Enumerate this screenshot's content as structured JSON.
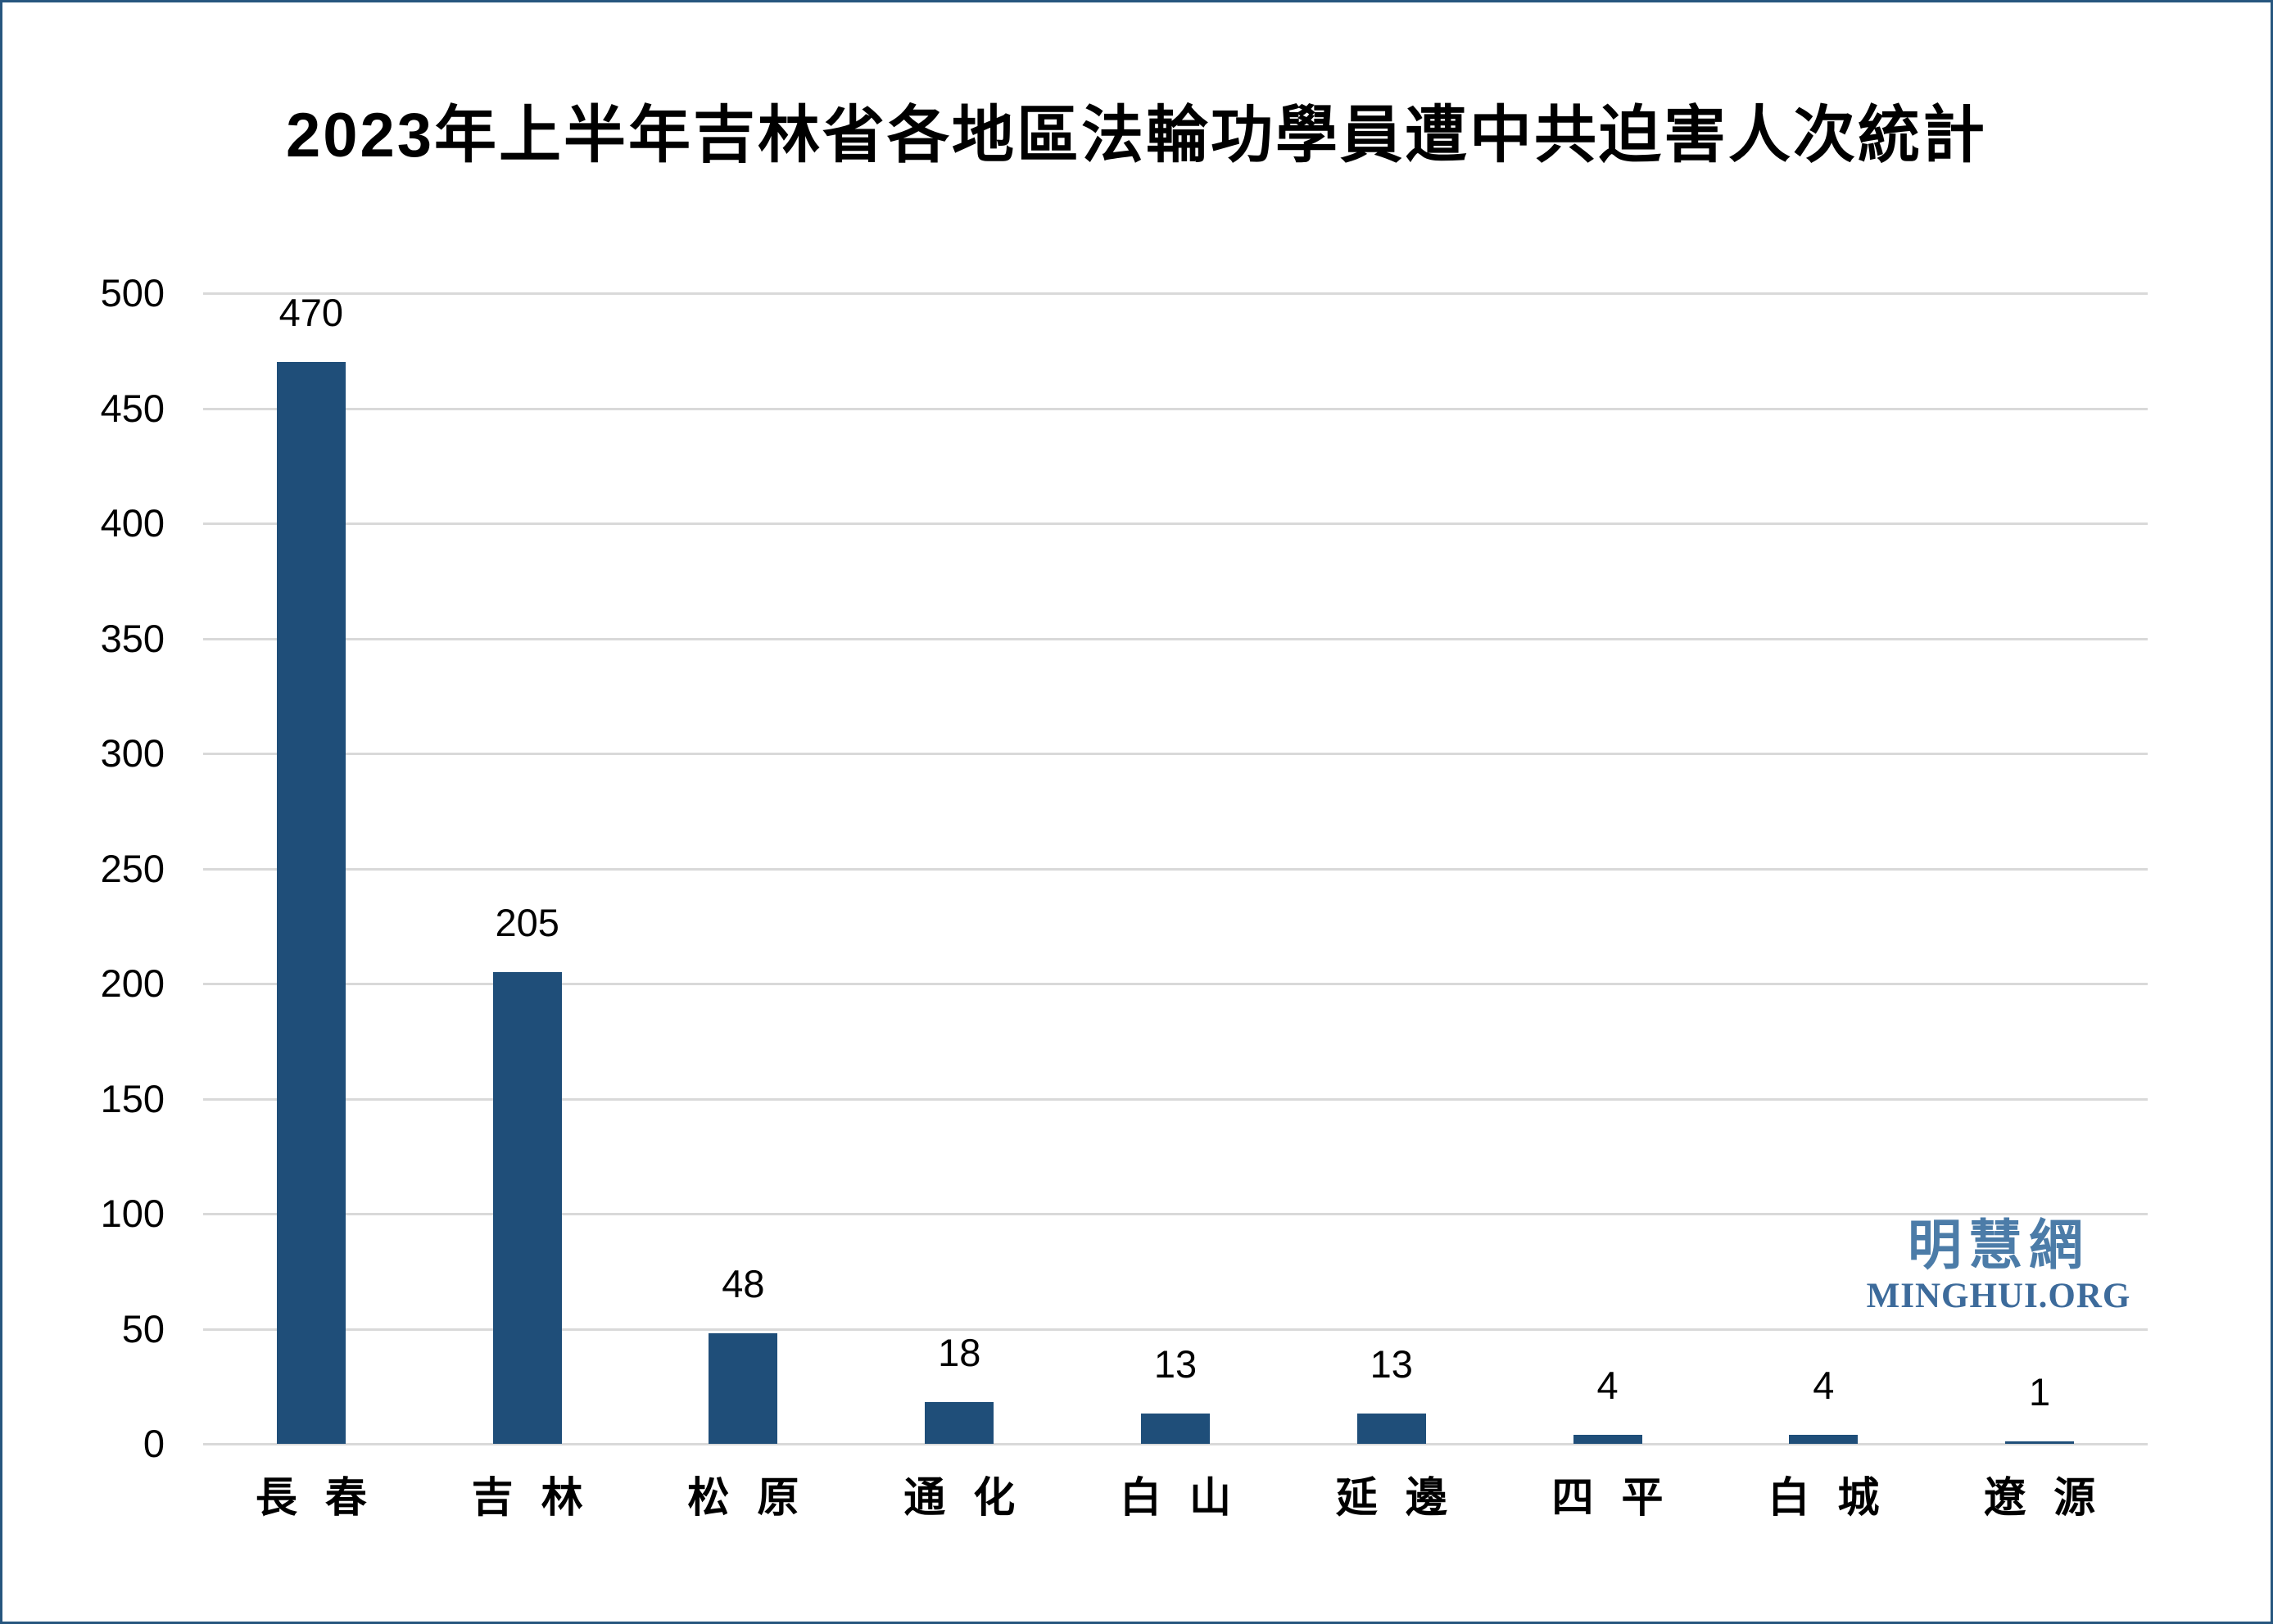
{
  "chart_data": {
    "type": "bar",
    "title": "2023年上半年吉林省各地區法輪功學員遭中共迫害人次統計",
    "categories": [
      "長春",
      "吉林",
      "松原",
      "通化",
      "白山",
      "延邊",
      "四平",
      "白城",
      "遼源"
    ],
    "values": [
      470,
      205,
      48,
      18,
      13,
      13,
      4,
      4,
      1
    ],
    "data_labels": [
      "470",
      "205",
      "48",
      "18",
      "13",
      "13",
      "4",
      "4",
      "1"
    ],
    "xlabel": "",
    "ylabel": "",
    "ylim": [
      0,
      500
    ],
    "ytick_interval": 50,
    "yticks": [
      "0",
      "50",
      "100",
      "150",
      "200",
      "250",
      "300",
      "350",
      "400",
      "450",
      "500"
    ],
    "grid": "horizontal",
    "legend": "none",
    "bar_color": "#1F4E79",
    "gridline_color": "#D9D9D9",
    "text_color": "#000000"
  },
  "watermark": {
    "cjk_text": "明慧網",
    "latin_text": "MINGHUI.ORG",
    "cjk_color": "#4C7CA8",
    "latin_color": "#3D6B9B"
  },
  "frame": {
    "border_color": "#27567F"
  }
}
